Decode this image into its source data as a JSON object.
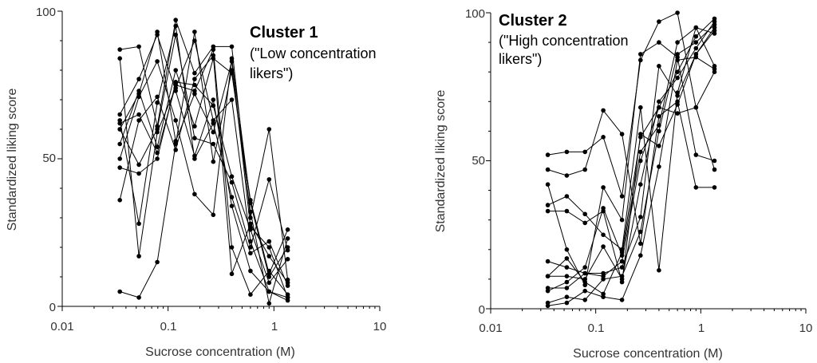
{
  "chart_data": [
    {
      "type": "line",
      "title": "Cluster 1",
      "subtitle": "(\"Low concentration likers\")",
      "subtitle_lines": [
        "(\"Low concentration",
        "likers\")"
      ],
      "xlabel": "Sucrose concentration (M)",
      "ylabel": "Standardized liking score",
      "xscale": "log",
      "xlim": [
        0.01,
        10
      ],
      "ylim": [
        0,
        100
      ],
      "xticks": [
        0.01,
        0.1,
        1,
        10
      ],
      "xtick_labels": [
        "0.01",
        "0.1",
        "1",
        "10"
      ],
      "yticks": [
        0,
        50,
        100
      ],
      "ytick_labels": [
        "0",
        "50",
        "100"
      ],
      "x": [
        0.035,
        0.053,
        0.079,
        0.118,
        0.178,
        0.267,
        0.4,
        0.6,
        0.9,
        1.35
      ],
      "series": [
        {
          "name": "s1",
          "values": [
            87,
            88,
            61,
            97,
            79,
            88,
            88,
            30,
            60,
            9
          ]
        },
        {
          "name": "s2",
          "values": [
            84,
            17,
            59,
            74,
            90,
            63,
            70,
            22,
            5,
            3
          ]
        },
        {
          "name": "s3",
          "values": [
            65,
            77,
            92,
            73,
            51,
            70,
            34,
            12,
            5,
            2
          ]
        },
        {
          "name": "s4",
          "values": [
            62,
            65,
            52,
            75,
            73,
            87,
            20,
            4,
            12,
            4
          ]
        },
        {
          "name": "s5",
          "values": [
            60,
            72,
            93,
            56,
            72,
            59,
            83,
            27,
            20,
            3
          ]
        },
        {
          "name": "s6",
          "values": [
            55,
            73,
            54,
            80,
            61,
            84,
            79,
            36,
            11,
            26
          ]
        },
        {
          "name": "s7",
          "values": [
            50,
            71,
            83,
            63,
            38,
            31,
            84,
            35,
            10,
            20
          ]
        },
        {
          "name": "s8",
          "values": [
            47,
            45,
            50,
            76,
            75,
            68,
            44,
            26,
            8,
            16
          ]
        },
        {
          "name": "s9",
          "values": [
            36,
            63,
            71,
            53,
            77,
            85,
            11,
            28,
            17,
            8
          ]
        },
        {
          "name": "s10",
          "values": [
            60,
            48,
            60,
            92,
            57,
            55,
            42,
            20,
            43,
            19
          ]
        },
        {
          "name": "s11",
          "values": [
            63,
            28,
            69,
            95,
            50,
            62,
            37,
            18,
            22,
            7
          ]
        },
        {
          "name": "s12",
          "values": [
            5,
            3,
            15,
            55,
            93,
            49,
            80,
            32,
            1,
            23
          ]
        }
      ]
    },
    {
      "type": "line",
      "title": "Cluster 2",
      "subtitle": "(\"High concentration likers\")",
      "subtitle_lines": [
        "(\"High concentration",
        "likers\")"
      ],
      "xlabel": "Sucrose concentration (M)",
      "ylabel": "Standardized liking score",
      "xscale": "log",
      "xlim": [
        0.01,
        10
      ],
      "ylim": [
        0,
        100
      ],
      "xticks": [
        0.01,
        0.1,
        1,
        10
      ],
      "xtick_labels": [
        "0.01",
        "0.1",
        "1",
        "10"
      ],
      "yticks": [
        0,
        50,
        100
      ],
      "ytick_labels": [
        "0",
        "50",
        "100"
      ],
      "x": [
        0.035,
        0.053,
        0.079,
        0.118,
        0.178,
        0.267,
        0.4,
        0.6,
        0.9,
        1.35
      ],
      "series": [
        {
          "name": "s1",
          "values": [
            52,
            53,
            53,
            58,
            38,
            84,
            97,
            100,
            68,
            47
          ]
        },
        {
          "name": "s2",
          "values": [
            47,
            45,
            47,
            67,
            59,
            22,
            65,
            70,
            41,
            41
          ]
        },
        {
          "name": "s3",
          "values": [
            42,
            20,
            8,
            41,
            30,
            86,
            90,
            85,
            52,
            50
          ]
        },
        {
          "name": "s4",
          "values": [
            35,
            38,
            32,
            25,
            20,
            68,
            13,
            73,
            95,
            82
          ]
        },
        {
          "name": "s5",
          "values": [
            33,
            33,
            29,
            33,
            9,
            59,
            55,
            69,
            86,
            95
          ]
        },
        {
          "name": "s6",
          "values": [
            16,
            14,
            12,
            11,
            16,
            50,
            68,
            80,
            92,
            98
          ]
        },
        {
          "name": "s7",
          "values": [
            11,
            11,
            10,
            21,
            10,
            42,
            70,
            78,
            88,
            97
          ]
        },
        {
          "name": "s8",
          "values": [
            7,
            7,
            12,
            12,
            14,
            31,
            82,
            72,
            86,
            94
          ]
        },
        {
          "name": "s9",
          "values": [
            2,
            4,
            3,
            10,
            11,
            26,
            60,
            86,
            90,
            96
          ]
        },
        {
          "name": "s10",
          "values": [
            1,
            2,
            6,
            4,
            3,
            18,
            48,
            84,
            85,
            81
          ]
        },
        {
          "name": "s11",
          "values": [
            11,
            17,
            9,
            5,
            19,
            58,
            68,
            66,
            68,
            80
          ]
        },
        {
          "name": "s12",
          "values": [
            6,
            9,
            14,
            34,
            18,
            53,
            62,
            90,
            95,
            93
          ]
        }
      ]
    }
  ]
}
